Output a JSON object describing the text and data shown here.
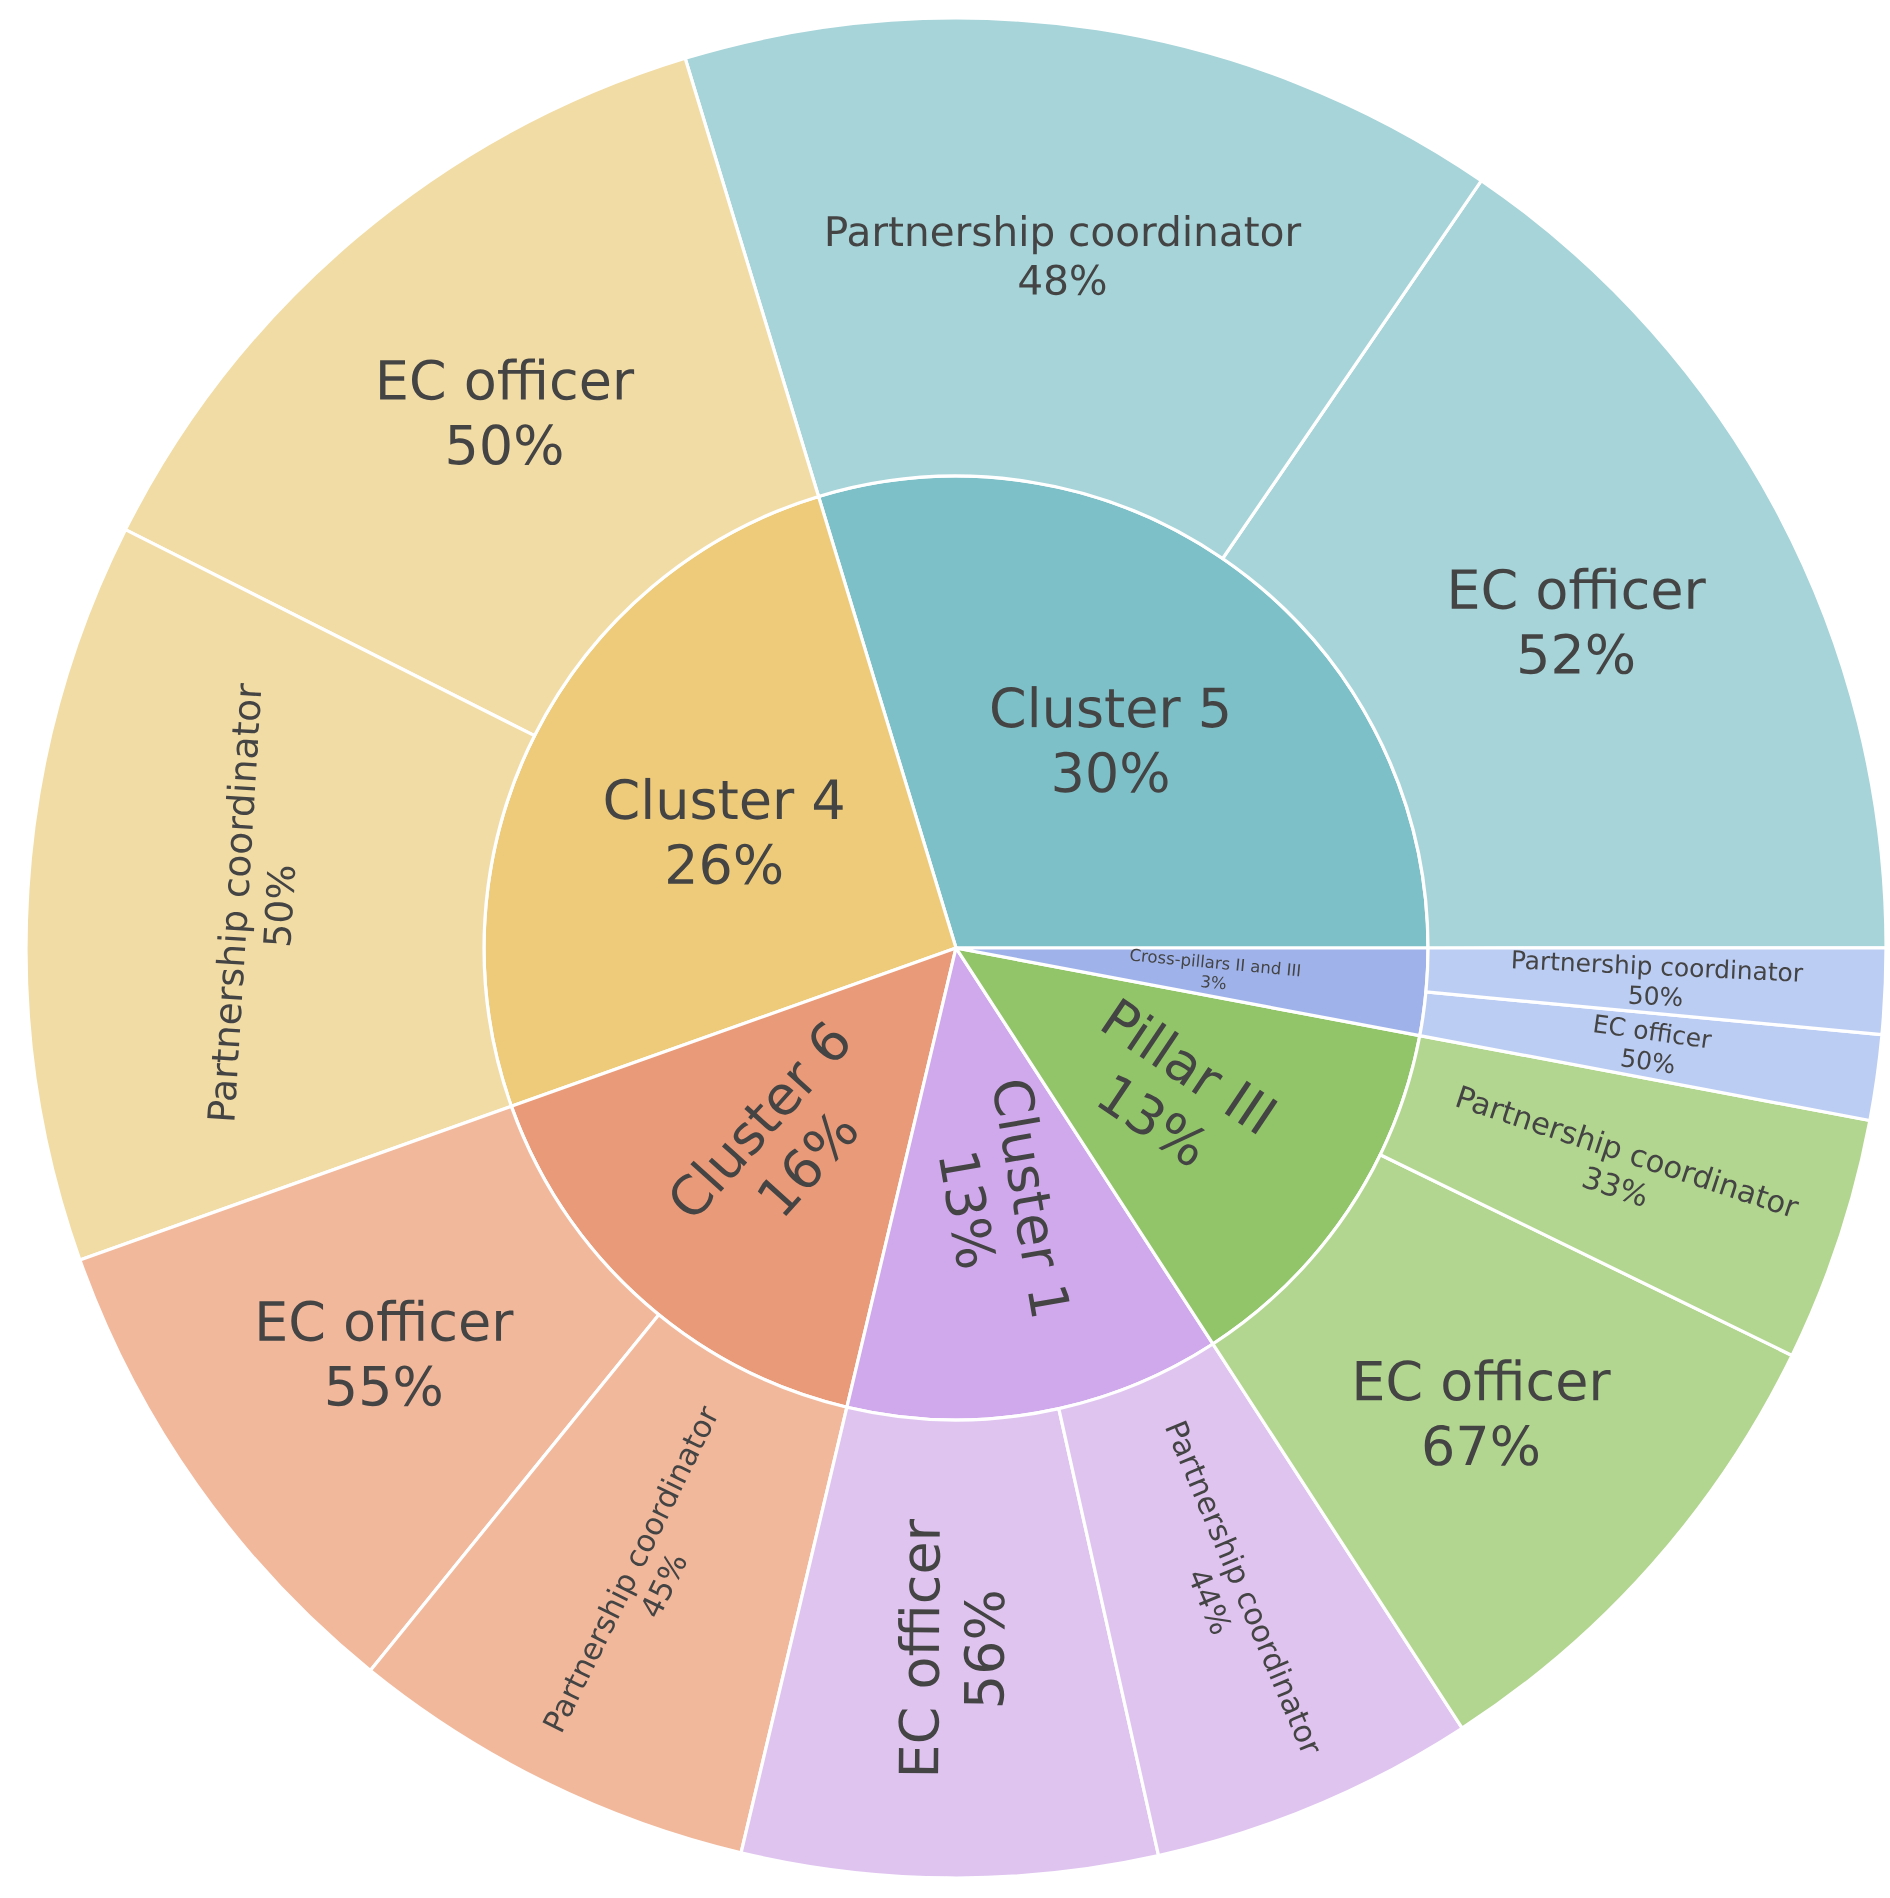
{
  "chart_data": {
    "type": "other",
    "categories": [
      "Cluster 5",
      "Cluster 4",
      "Cluster 6",
      "Cluster 1",
      "Pillar III",
      "Cross-pillars II and III"
    ],
    "values": [
      30,
      26,
      16,
      13,
      13,
      3
    ],
    "value_labels": [
      "30%",
      "26%",
      "16%",
      "13%",
      "13%",
      "3%"
    ],
    "colors": [
      "#7dc0c8",
      "#edcb7a",
      "#e99a78",
      "#cfa9ec",
      "#92c46a",
      "#9fb3ea"
    ],
    "series": [
      {
        "name": "EC officer",
        "values": [
          52,
          50,
          55,
          56,
          67,
          50
        ],
        "value_labels": [
          "52%",
          "50%",
          "55%",
          "56%",
          "67%",
          "50%"
        ],
        "colors": [
          "#a6d4d9",
          "#f2dca5",
          "#f1b89c",
          "#dfc4f0",
          "#b2d68f",
          "#bccdf3"
        ]
      },
      {
        "name": "Partnership coordinator",
        "values": [
          48,
          50,
          45,
          44,
          33,
          50
        ],
        "value_labels": [
          "48%",
          "50%",
          "45%",
          "44%",
          "33%",
          "50%"
        ],
        "colors": [
          "#a6d4d9",
          "#f2dca5",
          "#f1b89c",
          "#dfc4f0",
          "#b2d68f",
          "#bccdf3"
        ]
      }
    ]
  }
}
